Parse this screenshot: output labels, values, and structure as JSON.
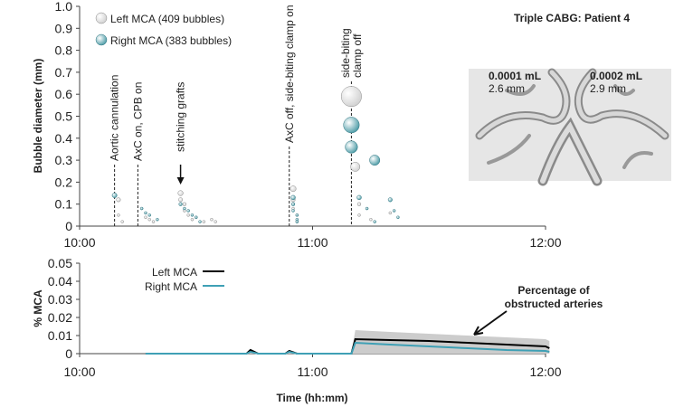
{
  "chart_data": [
    {
      "type": "scatter",
      "title": "Triple CABG: Patient 4",
      "ylabel": "Bubble diameter (mm)",
      "xlim": [
        "10:00",
        "12:00"
      ],
      "xticks": [
        "10:00",
        "11:00",
        "12:00"
      ],
      "ylim": [
        0,
        1
      ],
      "yticks": [
        0,
        0.1,
        0.2,
        0.3,
        0.4,
        0.5,
        0.6,
        0.7,
        0.8,
        0.9,
        {
          "value": 1,
          "label": "1.0"
        }
      ],
      "series": [
        {
          "name": "Left MCA (409 bubbles)",
          "color": "#d0d0d0",
          "x": [
            "10:10",
            "10:10",
            "10:11",
            "10:17",
            "10:18",
            "10:19",
            "10:26",
            "10:26",
            "10:27",
            "10:27",
            "10:28",
            "10:29",
            "10:30",
            "10:32",
            "10:34",
            "10:35",
            "10:55",
            "10:55",
            "10:55",
            "10:56",
            "10:56",
            "11:10",
            "11:11",
            "11:12",
            "11:12",
            "11:15",
            "11:20"
          ],
          "values": [
            0.12,
            0.05,
            0.02,
            0.04,
            0.03,
            0.02,
            0.15,
            0.12,
            0.1,
            0.07,
            0.05,
            0.03,
            0.04,
            0.02,
            0.03,
            0.02,
            0.17,
            0.12,
            0.08,
            0.05,
            0.02,
            0.59,
            0.27,
            0.1,
            0.05,
            0.03,
            0.06
          ]
        },
        {
          "name": "Right MCA (383 bubbles)",
          "color": "#4a9aa5",
          "x": [
            "10:09",
            "10:16",
            "10:17",
            "10:18",
            "10:20",
            "10:26",
            "10:27",
            "10:28",
            "10:29",
            "10:30",
            "10:31",
            "10:55",
            "10:55",
            "10:55",
            "10:56",
            "10:56",
            "10:56",
            "11:10",
            "11:10",
            "11:16",
            "11:12",
            "11:14",
            "11:20",
            "11:21",
            "11:22",
            "11:16"
          ],
          "values": [
            0.14,
            0.08,
            0.06,
            0.05,
            0.03,
            0.1,
            0.08,
            0.07,
            0.05,
            0.04,
            0.02,
            0.13,
            0.1,
            0.07,
            0.05,
            0.03,
            0.02,
            0.46,
            0.36,
            0.3,
            0.13,
            0.08,
            0.12,
            0.07,
            0.04,
            0.02
          ]
        }
      ],
      "annotations": [
        {
          "lines": [
            "Aortic cannulation"
          ],
          "x": "10:09"
        },
        {
          "lines": [
            "AxC on, CPB on"
          ],
          "x": "10:15"
        },
        {
          "lines": [
            "stitching grafts"
          ],
          "x": "10:26"
        },
        {
          "lines": [
            "AxC off, side-biting clamp on"
          ],
          "x": "10:54"
        },
        {
          "lines": [
            "side-biting",
            "clamp off"
          ],
          "x": "11:10"
        }
      ],
      "inset": {
        "left": [
          "0.0001 mL",
          "2.6 mm"
        ],
        "right": [
          "0.0002 mL",
          "2.9 mm"
        ]
      }
    },
    {
      "type": "line",
      "ylabel": "% MCA",
      "xlabel": "Time (hh:mm)",
      "xlim": [
        "10:00",
        "12:00"
      ],
      "xticks": [
        "10:00",
        "11:00",
        "12:00"
      ],
      "ylim": [
        0,
        0.05
      ],
      "yticks": [
        0,
        0.01,
        0.02,
        0.03,
        0.04,
        0.05
      ],
      "x": [
        "10:17",
        "10:43",
        "10:44",
        "10:46",
        "10:53",
        "10:54",
        "10:56",
        "11:10",
        "11:11",
        "11:20",
        "11:30",
        "11:40",
        "11:50",
        "12:00",
        "12:01"
      ],
      "band": {
        "color": "#cccccc",
        "upper": [
          0,
          0,
          0.0025,
          0,
          0,
          0.002,
          0,
          0,
          0.013,
          0.012,
          0.011,
          0.01,
          0.009,
          0.008,
          0.007
        ]
      },
      "series": [
        {
          "name": "Left MCA",
          "color": "#000000",
          "values": [
            0,
            0,
            0.002,
            0,
            0,
            0.0015,
            0,
            0,
            0.008,
            0.0075,
            0.007,
            0.006,
            0.005,
            0.004,
            0.003
          ]
        },
        {
          "name": "Right MCA",
          "color": "#3fa0b5",
          "values": [
            0,
            0,
            0.001,
            0,
            0,
            0.001,
            0,
            0,
            0.006,
            0.005,
            0.004,
            0.003,
            0.002,
            0.0015,
            0.001
          ]
        }
      ],
      "annotation": [
        "Percentage of",
        "obstructed arteries"
      ]
    }
  ]
}
